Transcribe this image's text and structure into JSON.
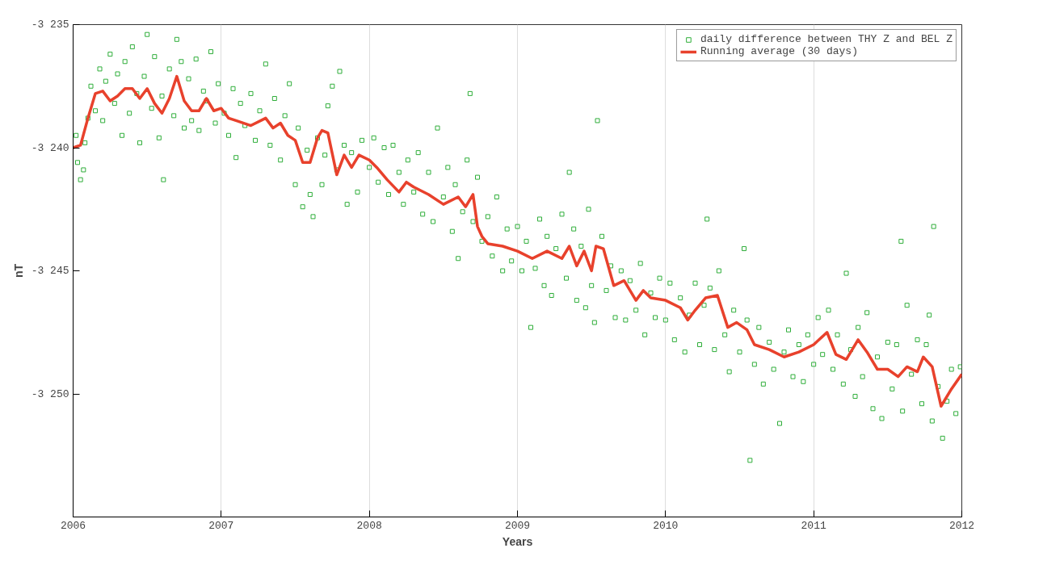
{
  "chart_data": {
    "type": "scatter",
    "xlabel": "Years",
    "ylabel": "nT",
    "xlim": [
      2006,
      2012
    ],
    "xticks": [
      2006,
      2007,
      2008,
      2009,
      2010,
      2011,
      2012
    ],
    "ylim": [
      -3255,
      -3235
    ],
    "yticks": [
      {
        "value": -3235,
        "label": "-3 235"
      },
      {
        "value": -3240,
        "label": "-3 240"
      },
      {
        "value": -3245,
        "label": "-3 245"
      },
      {
        "value": -3250,
        "label": "-3 250"
      }
    ],
    "grid": "x",
    "legend": "top right",
    "series": [
      {
        "name": "daily difference between THY Z and BEL Z",
        "marker": "square",
        "color": "#2fae3a",
        "x": [
          2006.02,
          2006.03,
          2006.05,
          2006.07,
          2006.08,
          2006.1,
          2006.12,
          2006.15,
          2006.18,
          2006.2,
          2006.22,
          2006.25,
          2006.28,
          2006.3,
          2006.33,
          2006.35,
          2006.38,
          2006.4,
          2006.43,
          2006.45,
          2006.48,
          2006.5,
          2006.53,
          2006.55,
          2006.58,
          2006.6,
          2006.61,
          2006.65,
          2006.68,
          2006.7,
          2006.73,
          2006.75,
          2006.78,
          2006.8,
          2006.83,
          2006.85,
          2006.88,
          2006.9,
          2006.93,
          2006.96,
          2006.98,
          2007.02,
          2007.05,
          2007.08,
          2007.1,
          2007.13,
          2007.16,
          2007.2,
          2007.23,
          2007.26,
          2007.3,
          2007.33,
          2007.36,
          2007.4,
          2007.43,
          2007.46,
          2007.5,
          2007.52,
          2007.55,
          2007.58,
          2007.6,
          2007.62,
          2007.65,
          2007.68,
          2007.7,
          2007.72,
          2007.75,
          2007.78,
          2007.8,
          2007.83,
          2007.85,
          2007.88,
          2007.92,
          2007.95,
          2008.0,
          2008.03,
          2008.06,
          2008.1,
          2008.13,
          2008.16,
          2008.2,
          2008.23,
          2008.26,
          2008.3,
          2008.33,
          2008.36,
          2008.4,
          2008.43,
          2008.46,
          2008.5,
          2008.53,
          2008.56,
          2008.58,
          2008.6,
          2008.63,
          2008.66,
          2008.68,
          2008.7,
          2008.73,
          2008.76,
          2008.8,
          2008.83,
          2008.86,
          2008.9,
          2008.93,
          2008.96,
          2009.0,
          2009.03,
          2009.06,
          2009.09,
          2009.12,
          2009.15,
          2009.18,
          2009.2,
          2009.23,
          2009.26,
          2009.3,
          2009.33,
          2009.35,
          2009.38,
          2009.4,
          2009.43,
          2009.46,
          2009.48,
          2009.5,
          2009.52,
          2009.54,
          2009.57,
          2009.6,
          2009.63,
          2009.66,
          2009.7,
          2009.73,
          2009.76,
          2009.8,
          2009.83,
          2009.86,
          2009.9,
          2009.93,
          2009.96,
          2010.0,
          2010.03,
          2010.06,
          2010.1,
          2010.13,
          2010.16,
          2010.2,
          2010.23,
          2010.26,
          2010.28,
          2010.3,
          2010.33,
          2010.36,
          2010.4,
          2010.43,
          2010.46,
          2010.5,
          2010.53,
          2010.55,
          2010.57,
          2010.6,
          2010.63,
          2010.66,
          2010.7,
          2010.73,
          2010.77,
          2010.8,
          2010.83,
          2010.86,
          2010.9,
          2010.93,
          2010.96,
          2011.0,
          2011.03,
          2011.06,
          2011.1,
          2011.13,
          2011.16,
          2011.2,
          2011.22,
          2011.25,
          2011.28,
          2011.3,
          2011.33,
          2011.36,
          2011.4,
          2011.43,
          2011.46,
          2011.5,
          2011.53,
          2011.56,
          2011.59,
          2011.6,
          2011.63,
          2011.66,
          2011.7,
          2011.73,
          2011.76,
          2011.78,
          2011.8,
          2011.81,
          2011.84,
          2011.87,
          2011.9,
          2011.93,
          2011.96,
          2011.99
        ],
        "values": [
          -3239.5,
          -3240.6,
          -3241.3,
          -3240.9,
          -3239.8,
          -3238.8,
          -3237.5,
          -3238.5,
          -3236.8,
          -3238.9,
          -3237.3,
          -3236.2,
          -3238.2,
          -3237.0,
          -3239.5,
          -3236.5,
          -3238.6,
          -3235.9,
          -3237.8,
          -3239.8,
          -3237.1,
          -3235.4,
          -3238.4,
          -3236.3,
          -3239.6,
          -3237.9,
          -3241.3,
          -3236.8,
          -3238.7,
          -3235.6,
          -3236.5,
          -3239.2,
          -3237.2,
          -3238.9,
          -3236.4,
          -3239.3,
          -3237.7,
          -3238.1,
          -3236.1,
          -3239.0,
          -3237.4,
          -3238.6,
          -3239.5,
          -3237.6,
          -3240.4,
          -3238.2,
          -3239.1,
          -3237.8,
          -3239.7,
          -3238.5,
          -3236.6,
          -3239.9,
          -3238.0,
          -3240.5,
          -3238.7,
          -3237.4,
          -3241.5,
          -3239.2,
          -3242.4,
          -3240.1,
          -3241.9,
          -3242.8,
          -3239.6,
          -3241.5,
          -3240.3,
          -3238.3,
          -3237.5,
          -3240.9,
          -3236.9,
          -3239.9,
          -3242.3,
          -3240.2,
          -3241.8,
          -3239.7,
          -3240.8,
          -3239.6,
          -3241.4,
          -3240.0,
          -3241.9,
          -3239.9,
          -3241.0,
          -3242.3,
          -3240.5,
          -3241.8,
          -3240.2,
          -3242.7,
          -3241.0,
          -3243.0,
          -3239.2,
          -3242.0,
          -3240.8,
          -3243.4,
          -3241.5,
          -3244.5,
          -3242.6,
          -3240.5,
          -3237.8,
          -3243.0,
          -3241.2,
          -3243.8,
          -3242.8,
          -3244.4,
          -3242.0,
          -3245.0,
          -3243.3,
          -3244.6,
          -3243.2,
          -3245.0,
          -3243.8,
          -3247.3,
          -3244.9,
          -3242.9,
          -3245.6,
          -3243.6,
          -3246.0,
          -3244.1,
          -3242.7,
          -3245.3,
          -3241.0,
          -3243.3,
          -3246.2,
          -3244.0,
          -3246.5,
          -3242.5,
          -3245.6,
          -3247.1,
          -3238.9,
          -3243.6,
          -3245.8,
          -3244.8,
          -3246.9,
          -3245.0,
          -3247.0,
          -3245.4,
          -3246.6,
          -3244.7,
          -3247.6,
          -3245.9,
          -3246.9,
          -3245.3,
          -3247.0,
          -3245.5,
          -3247.8,
          -3246.1,
          -3248.3,
          -3246.8,
          -3245.5,
          -3248.0,
          -3246.4,
          -3242.9,
          -3245.7,
          -3248.2,
          -3245.0,
          -3247.6,
          -3249.1,
          -3246.6,
          -3248.3,
          -3244.1,
          -3247.0,
          -3252.7,
          -3248.8,
          -3247.3,
          -3249.6,
          -3247.9,
          -3249.0,
          -3251.2,
          -3248.3,
          -3247.4,
          -3249.3,
          -3248.0,
          -3249.5,
          -3247.6,
          -3248.8,
          -3246.9,
          -3248.4,
          -3246.6,
          -3249.0,
          -3247.6,
          -3249.6,
          -3245.1,
          -3248.2,
          -3250.1,
          -3247.3,
          -3249.3,
          -3246.7,
          -3250.6,
          -3248.5,
          -3251.0,
          -3247.9,
          -3249.8,
          -3248.0,
          -3243.8,
          -3250.7,
          -3246.4,
          -3249.2,
          -3247.8,
          -3250.4,
          -3248.0,
          -3246.8,
          -3251.1,
          -3243.2,
          -3249.7,
          -3251.8,
          -3250.3,
          -3249.0,
          -3250.8,
          -3248.9
        ]
      },
      {
        "name": "Running average (30 days)",
        "type": "line",
        "line_style": "solid",
        "color": "#e8412c",
        "x": [
          2006.0,
          2006.05,
          2006.1,
          2006.15,
          2006.2,
          2006.25,
          2006.3,
          2006.35,
          2006.4,
          2006.45,
          2006.5,
          2006.55,
          2006.6,
          2006.65,
          2006.7,
          2006.75,
          2006.8,
          2006.85,
          2006.9,
          2006.95,
          2007.0,
          2007.05,
          2007.1,
          2007.2,
          2007.3,
          2007.35,
          2007.4,
          2007.45,
          2007.5,
          2007.55,
          2007.6,
          2007.65,
          2007.68,
          2007.72,
          2007.78,
          2007.83,
          2007.88,
          2007.93,
          2008.0,
          2008.05,
          2008.12,
          2008.2,
          2008.25,
          2008.3,
          2008.4,
          2008.5,
          2008.6,
          2008.65,
          2008.7,
          2008.73,
          2008.76,
          2008.8,
          2008.9,
          2009.0,
          2009.1,
          2009.2,
          2009.3,
          2009.35,
          2009.4,
          2009.45,
          2009.5,
          2009.53,
          2009.58,
          2009.65,
          2009.72,
          2009.8,
          2009.85,
          2009.9,
          2010.0,
          2010.1,
          2010.15,
          2010.2,
          2010.27,
          2010.35,
          2010.42,
          2010.48,
          2010.55,
          2010.6,
          2010.7,
          2010.8,
          2010.9,
          2011.0,
          2011.09,
          2011.15,
          2011.22,
          2011.3,
          2011.36,
          2011.43,
          2011.5,
          2011.57,
          2011.63,
          2011.7,
          2011.74,
          2011.8,
          2011.86,
          2011.93,
          2012.0
        ],
        "values": [
          -3240.0,
          -3239.9,
          -3238.8,
          -3237.8,
          -3237.7,
          -3238.1,
          -3237.9,
          -3237.6,
          -3237.6,
          -3238.0,
          -3237.6,
          -3238.2,
          -3238.6,
          -3238.0,
          -3237.1,
          -3238.1,
          -3238.5,
          -3238.5,
          -3238.0,
          -3238.5,
          -3238.4,
          -3238.8,
          -3238.9,
          -3239.1,
          -3238.8,
          -3239.2,
          -3239.0,
          -3239.5,
          -3239.7,
          -3240.6,
          -3240.6,
          -3239.6,
          -3239.3,
          -3239.4,
          -3241.1,
          -3240.3,
          -3240.8,
          -3240.3,
          -3240.5,
          -3240.8,
          -3241.3,
          -3241.8,
          -3241.4,
          -3241.6,
          -3241.9,
          -3242.3,
          -3242.0,
          -3242.4,
          -3241.9,
          -3243.2,
          -3243.6,
          -3243.9,
          -3244.0,
          -3244.2,
          -3244.5,
          -3244.2,
          -3244.5,
          -3244.0,
          -3244.8,
          -3244.2,
          -3245.0,
          -3244.0,
          -3244.1,
          -3245.6,
          -3245.4,
          -3246.2,
          -3245.8,
          -3246.1,
          -3246.2,
          -3246.5,
          -3247.0,
          -3246.6,
          -3246.1,
          -3246.0,
          -3247.3,
          -3247.1,
          -3247.4,
          -3248.0,
          -3248.2,
          -3248.5,
          -3248.3,
          -3248.0,
          -3247.5,
          -3248.4,
          -3248.6,
          -3247.8,
          -3248.3,
          -3249.0,
          -3249.0,
          -3249.3,
          -3248.9,
          -3249.1,
          -3248.5,
          -3248.9,
          -3250.5,
          -3249.8,
          -3249.2
        ]
      }
    ]
  }
}
